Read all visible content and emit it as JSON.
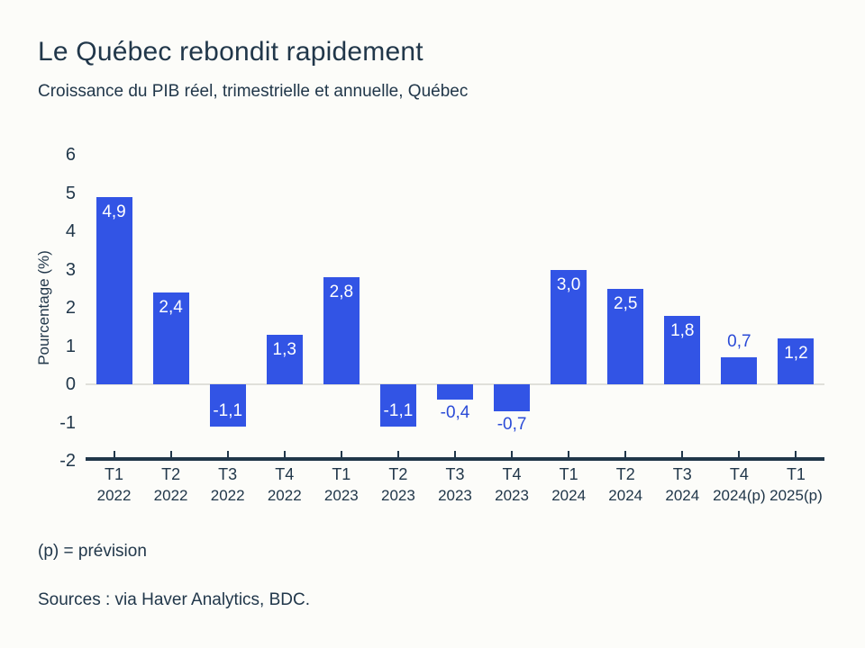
{
  "page": {
    "background": "#FCFCF9",
    "text_color": "#21374A"
  },
  "chart_data": {
    "type": "bar",
    "title": "Le Québec rebondit rapidement",
    "subtitle": "Croissance du PIB réel, trimestrielle et annuelle, Québec",
    "ylabel": "Pourcentage (%)",
    "xlabel": "",
    "ylim": [
      -2,
      6
    ],
    "yticks": [
      6,
      5,
      4,
      3,
      2,
      1,
      0,
      -1,
      -2
    ],
    "grid": "zero-line-only",
    "legend": "none",
    "categories": [
      {
        "quarter": "T1",
        "year": "2022"
      },
      {
        "quarter": "T2",
        "year": "2022"
      },
      {
        "quarter": "T3",
        "year": "2022"
      },
      {
        "quarter": "T4",
        "year": "2022"
      },
      {
        "quarter": "T1",
        "year": "2023"
      },
      {
        "quarter": "T2",
        "year": "2023"
      },
      {
        "quarter": "T3",
        "year": "2023"
      },
      {
        "quarter": "T4",
        "year": "2023"
      },
      {
        "quarter": "T1",
        "year": "2024"
      },
      {
        "quarter": "T2",
        "year": "2024"
      },
      {
        "quarter": "T3",
        "year": "2024"
      },
      {
        "quarter": "T4",
        "year": "2024(p)"
      },
      {
        "quarter": "T1",
        "year": "2025(p)"
      }
    ],
    "values": [
      4.9,
      2.4,
      -1.1,
      1.3,
      2.8,
      -1.1,
      -0.4,
      -0.7,
      3.0,
      2.5,
      1.8,
      0.7,
      1.2
    ],
    "value_labels": [
      "4,9",
      "2,4",
      "-1,1",
      "1,3",
      "2,8",
      "-1,1",
      "-0,4",
      "-0,7",
      "3,0",
      "2,5",
      "1,8",
      "0,7",
      "1,2"
    ],
    "colors": {
      "bar": "#3254E5",
      "value_label_inside": "#FFFFFF",
      "value_label_outside": "#2B4BD7",
      "axis": "#21374A",
      "zero_line": "#E0E0DA"
    }
  },
  "footer": {
    "note": "(p) = prévision",
    "sources": "Sources : via Haver Analytics, BDC."
  }
}
